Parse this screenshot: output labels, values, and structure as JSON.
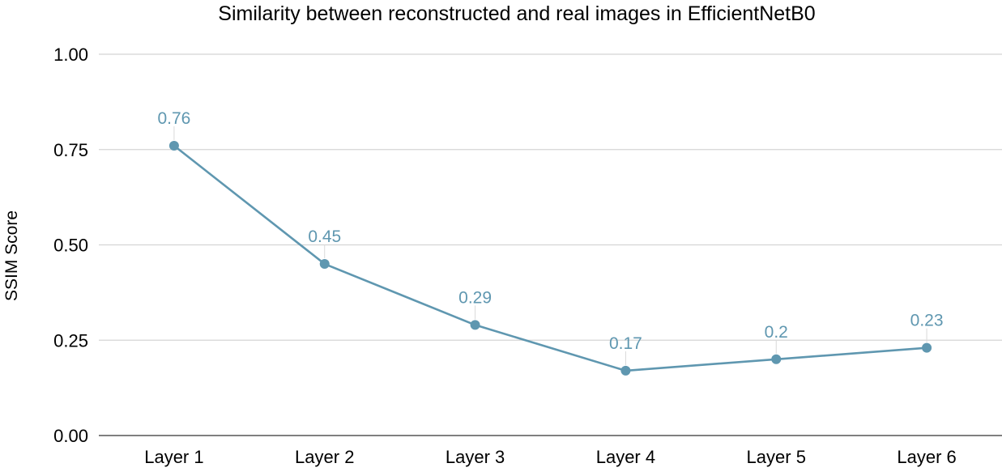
{
  "chart_data": {
    "type": "line",
    "title": "Similarity between reconstructed and real images in EfficientNetB0",
    "xlabel": "",
    "ylabel": "SSIM Score",
    "categories": [
      "Layer 1",
      "Layer 2",
      "Layer 3",
      "Layer 4",
      "Layer 5",
      "Layer 6"
    ],
    "values": [
      0.76,
      0.45,
      0.29,
      0.17,
      0.2,
      0.23
    ],
    "data_labels": [
      "0.76",
      "0.45",
      "0.29",
      "0.17",
      "0.2",
      "0.23"
    ],
    "ylim": [
      0,
      1
    ],
    "yticks": [
      "0.00",
      "0.25",
      "0.50",
      "0.75",
      "1.00"
    ],
    "ytick_values": [
      0,
      0.25,
      0.5,
      0.75,
      1.0
    ],
    "grid": true,
    "legend": "none",
    "colors": {
      "line": "#5f97b0",
      "label": "#5f97b0",
      "grid": "#d4d4d4"
    }
  }
}
